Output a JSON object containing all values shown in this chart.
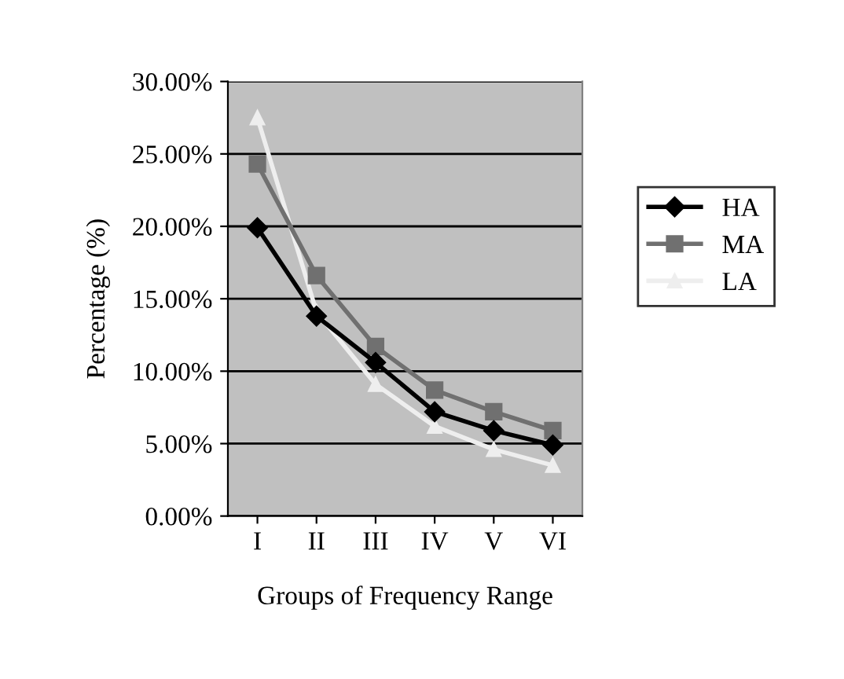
{
  "chart_data": {
    "type": "line",
    "xlabel": "Groups of Frequency Range",
    "ylabel": "Percentage (%)",
    "categories": [
      "I",
      "II",
      "III",
      "IV",
      "V",
      "VI"
    ],
    "series": [
      {
        "name": "HA",
        "color": "#000000",
        "marker": "diamond",
        "values": [
          19.9,
          13.8,
          10.6,
          7.2,
          5.9,
          4.9
        ]
      },
      {
        "name": "MA",
        "color": "#707070",
        "marker": "square",
        "values": [
          24.3,
          16.6,
          11.7,
          8.7,
          7.2,
          5.9
        ]
      },
      {
        "name": "LA",
        "color": "#eeeeee",
        "marker": "triangle",
        "values": [
          27.5,
          14.1,
          9.1,
          6.2,
          4.6,
          3.5
        ]
      }
    ],
    "ylim": [
      0,
      30
    ],
    "yticks": [
      {
        "value": 0,
        "label": "0.00%"
      },
      {
        "value": 5,
        "label": "5.00%"
      },
      {
        "value": 10,
        "label": "10.00%"
      },
      {
        "value": 15,
        "label": "15.00%"
      },
      {
        "value": 20,
        "label": "20.00%"
      },
      {
        "value": 25,
        "label": "25.00%"
      },
      {
        "value": 30,
        "label": "30.00%"
      }
    ],
    "grid": "y",
    "legend": "right"
  }
}
